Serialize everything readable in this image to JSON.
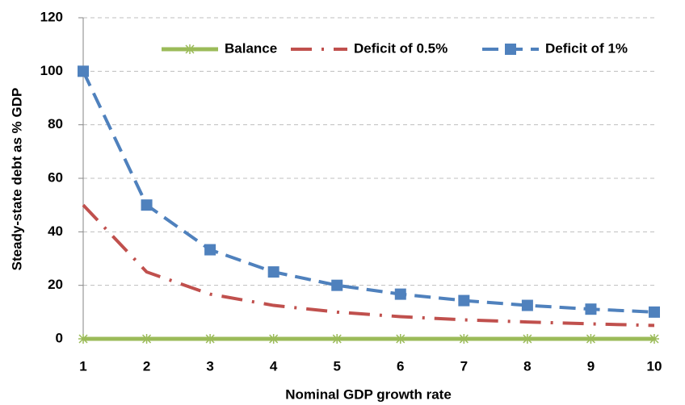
{
  "chart_data": {
    "type": "line",
    "x_label": "Nominal GDP growth rate",
    "y_label": "Steady-state debt as % GDP",
    "x": [
      1,
      2,
      3,
      4,
      5,
      6,
      7,
      8,
      9,
      10
    ],
    "xlim": [
      1,
      10
    ],
    "xticks": [
      1,
      2,
      3,
      4,
      5,
      6,
      7,
      8,
      9,
      10
    ],
    "ylim": [
      0,
      120
    ],
    "yticks": [
      0,
      20,
      40,
      60,
      80,
      100,
      120
    ],
    "grid": true,
    "legend": "top",
    "series": [
      {
        "name": "Balance",
        "color": "#9bbb59",
        "line_style": "solid",
        "marker": "star",
        "values": [
          0,
          0,
          0,
          0,
          0,
          0,
          0,
          0,
          0,
          0
        ]
      },
      {
        "name": "Deficit of 0.5%",
        "color": "#c0504d",
        "line_style": "dash-dot",
        "marker": "none",
        "values": [
          50,
          25,
          16.7,
          12.5,
          10,
          8.3,
          7.1,
          6.3,
          5.6,
          5
        ]
      },
      {
        "name": "Deficit of 1%",
        "color": "#4f81bd",
        "line_style": "dash",
        "marker": "square",
        "values": [
          100,
          50,
          33.3,
          25,
          20,
          16.7,
          14.3,
          12.5,
          11.1,
          10
        ]
      }
    ]
  }
}
